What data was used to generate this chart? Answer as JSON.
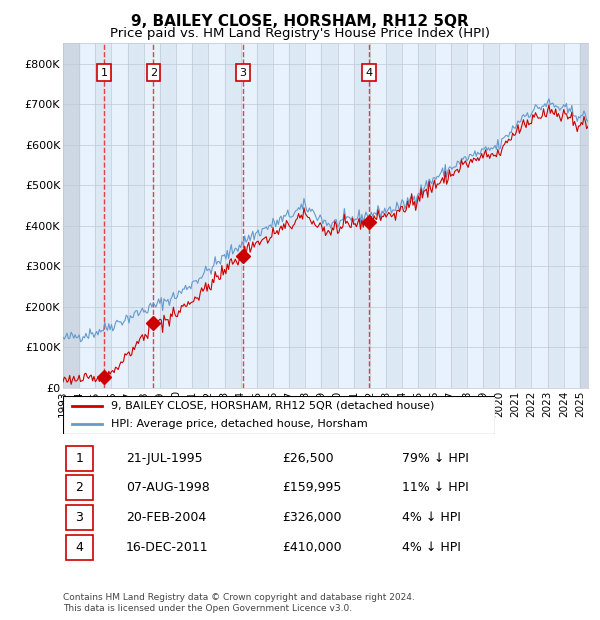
{
  "title": "9, BAILEY CLOSE, HORSHAM, RH12 5QR",
  "subtitle": "Price paid vs. HM Land Registry's House Price Index (HPI)",
  "xlim": [
    1993.0,
    2025.5
  ],
  "ylim": [
    0,
    850000
  ],
  "yticks": [
    0,
    100000,
    200000,
    300000,
    400000,
    500000,
    600000,
    700000,
    800000
  ],
  "ytick_labels": [
    "£0",
    "£100K",
    "£200K",
    "£300K",
    "£400K",
    "£500K",
    "£600K",
    "£700K",
    "£800K"
  ],
  "sale_dates_decimal": [
    1995.55,
    1998.6,
    2004.13,
    2011.96
  ],
  "sale_prices": [
    26500,
    159995,
    326000,
    410000
  ],
  "sale_labels": [
    "1",
    "2",
    "3",
    "4"
  ],
  "legend_line1": "9, BAILEY CLOSE, HORSHAM, RH12 5QR (detached house)",
  "legend_line2": "HPI: Average price, detached house, Horsham",
  "table_data": [
    [
      "1",
      "21-JUL-1995",
      "£26,500",
      "79% ↓ HPI"
    ],
    [
      "2",
      "07-AUG-1998",
      "£159,995",
      "11% ↓ HPI"
    ],
    [
      "3",
      "20-FEB-2004",
      "£326,000",
      "4% ↓ HPI"
    ],
    [
      "4",
      "16-DEC-2011",
      "£410,000",
      "4% ↓ HPI"
    ]
  ],
  "footer": "Contains HM Land Registry data © Crown copyright and database right 2024.\nThis data is licensed under the Open Government Licence v3.0.",
  "grid_color": "#c0c8d8",
  "red_line_color": "#cc0000",
  "blue_line_color": "#6699cc",
  "vline_color": "#dd4444",
  "band_colors": [
    "#dce8f4",
    "#e8f2fc"
  ],
  "title_fontsize": 11,
  "subtitle_fontsize": 9.5
}
